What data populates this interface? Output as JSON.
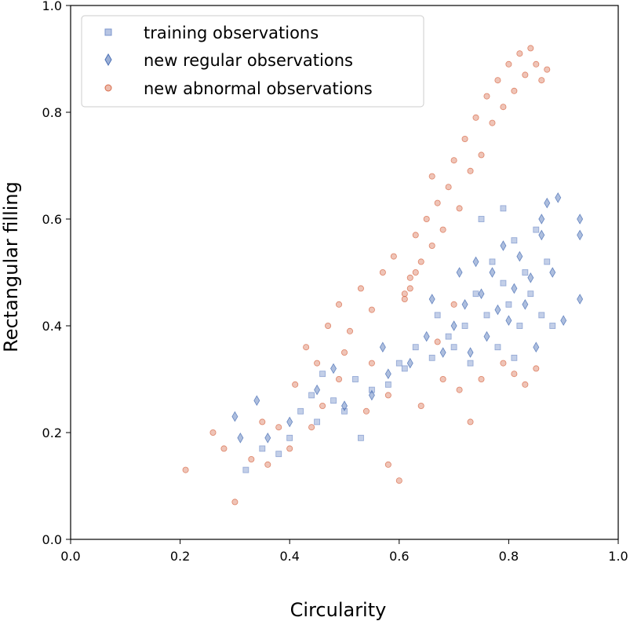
{
  "chart_data": {
    "type": "scatter",
    "xlabel": "Circularity",
    "ylabel": "Rectangular filling",
    "xlim": [
      0.0,
      1.0
    ],
    "ylim": [
      0.0,
      1.0
    ],
    "xticks": [
      "0.0",
      "0.2",
      "0.4",
      "0.6",
      "0.8",
      "1.0"
    ],
    "yticks": [
      "0.0",
      "0.2",
      "0.4",
      "0.6",
      "0.8",
      "1.0"
    ],
    "grid": false,
    "legend_position": "top-left",
    "series": [
      {
        "name": "training observations",
        "marker": "square",
        "color": "#7b95cc",
        "points": [
          [
            0.32,
            0.13
          ],
          [
            0.35,
            0.17
          ],
          [
            0.38,
            0.16
          ],
          [
            0.4,
            0.19
          ],
          [
            0.42,
            0.24
          ],
          [
            0.44,
            0.27
          ],
          [
            0.46,
            0.31
          ],
          [
            0.48,
            0.26
          ],
          [
            0.5,
            0.24
          ],
          [
            0.52,
            0.3
          ],
          [
            0.55,
            0.28
          ],
          [
            0.58,
            0.29
          ],
          [
            0.6,
            0.33
          ],
          [
            0.63,
            0.36
          ],
          [
            0.66,
            0.34
          ],
          [
            0.69,
            0.38
          ],
          [
            0.72,
            0.4
          ],
          [
            0.74,
            0.46
          ],
          [
            0.76,
            0.42
          ],
          [
            0.77,
            0.52
          ],
          [
            0.78,
            0.36
          ],
          [
            0.79,
            0.48
          ],
          [
            0.8,
            0.44
          ],
          [
            0.81,
            0.56
          ],
          [
            0.82,
            0.4
          ],
          [
            0.83,
            0.5
          ],
          [
            0.84,
            0.46
          ],
          [
            0.85,
            0.58
          ],
          [
            0.86,
            0.42
          ],
          [
            0.87,
            0.52
          ],
          [
            0.88,
            0.4
          ],
          [
            0.75,
            0.6
          ],
          [
            0.73,
            0.33
          ],
          [
            0.79,
            0.62
          ],
          [
            0.81,
            0.34
          ],
          [
            0.53,
            0.19
          ],
          [
            0.61,
            0.32
          ],
          [
            0.67,
            0.42
          ],
          [
            0.7,
            0.36
          ],
          [
            0.45,
            0.22
          ]
        ]
      },
      {
        "name": "new regular observations",
        "marker": "diamond",
        "color": "#4a6fb5",
        "points": [
          [
            0.93,
            0.45
          ],
          [
            0.93,
            0.57
          ],
          [
            0.93,
            0.6
          ],
          [
            0.9,
            0.41
          ],
          [
            0.89,
            0.64
          ],
          [
            0.88,
            0.5
          ],
          [
            0.87,
            0.63
          ],
          [
            0.86,
            0.57
          ],
          [
            0.85,
            0.36
          ],
          [
            0.84,
            0.49
          ],
          [
            0.83,
            0.44
          ],
          [
            0.82,
            0.53
          ],
          [
            0.81,
            0.47
          ],
          [
            0.8,
            0.41
          ],
          [
            0.79,
            0.55
          ],
          [
            0.78,
            0.43
          ],
          [
            0.77,
            0.5
          ],
          [
            0.76,
            0.38
          ],
          [
            0.75,
            0.46
          ],
          [
            0.74,
            0.52
          ],
          [
            0.73,
            0.35
          ],
          [
            0.72,
            0.44
          ],
          [
            0.7,
            0.4
          ],
          [
            0.68,
            0.35
          ],
          [
            0.65,
            0.38
          ],
          [
            0.62,
            0.33
          ],
          [
            0.58,
            0.31
          ],
          [
            0.55,
            0.27
          ],
          [
            0.5,
            0.25
          ],
          [
            0.45,
            0.28
          ],
          [
            0.4,
            0.22
          ],
          [
            0.36,
            0.19
          ],
          [
            0.31,
            0.19
          ],
          [
            0.3,
            0.23
          ],
          [
            0.34,
            0.26
          ],
          [
            0.48,
            0.32
          ],
          [
            0.57,
            0.36
          ],
          [
            0.66,
            0.45
          ],
          [
            0.71,
            0.5
          ],
          [
            0.86,
            0.6
          ]
        ]
      },
      {
        "name": "new abnormal observations",
        "marker": "circle",
        "color": "#d86b4a",
        "points": [
          [
            0.21,
            0.13
          ],
          [
            0.26,
            0.2
          ],
          [
            0.28,
            0.17
          ],
          [
            0.3,
            0.07
          ],
          [
            0.33,
            0.15
          ],
          [
            0.36,
            0.14
          ],
          [
            0.38,
            0.21
          ],
          [
            0.41,
            0.29
          ],
          [
            0.43,
            0.36
          ],
          [
            0.45,
            0.33
          ],
          [
            0.47,
            0.4
          ],
          [
            0.49,
            0.44
          ],
          [
            0.51,
            0.39
          ],
          [
            0.53,
            0.47
          ],
          [
            0.55,
            0.43
          ],
          [
            0.57,
            0.5
          ],
          [
            0.59,
            0.53
          ],
          [
            0.6,
            0.11
          ],
          [
            0.61,
            0.46
          ],
          [
            0.62,
            0.49
          ],
          [
            0.63,
            0.57
          ],
          [
            0.64,
            0.52
          ],
          [
            0.65,
            0.6
          ],
          [
            0.66,
            0.55
          ],
          [
            0.67,
            0.63
          ],
          [
            0.68,
            0.58
          ],
          [
            0.69,
            0.66
          ],
          [
            0.7,
            0.71
          ],
          [
            0.71,
            0.62
          ],
          [
            0.72,
            0.75
          ],
          [
            0.73,
            0.69
          ],
          [
            0.74,
            0.79
          ],
          [
            0.75,
            0.72
          ],
          [
            0.76,
            0.83
          ],
          [
            0.77,
            0.78
          ],
          [
            0.78,
            0.86
          ],
          [
            0.79,
            0.81
          ],
          [
            0.8,
            0.89
          ],
          [
            0.81,
            0.84
          ],
          [
            0.82,
            0.91
          ],
          [
            0.83,
            0.87
          ],
          [
            0.84,
            0.92
          ],
          [
            0.85,
            0.89
          ],
          [
            0.86,
            0.86
          ],
          [
            0.87,
            0.88
          ],
          [
            0.79,
            0.33
          ],
          [
            0.81,
            0.31
          ],
          [
            0.83,
            0.29
          ],
          [
            0.85,
            0.32
          ],
          [
            0.75,
            0.3
          ],
          [
            0.71,
            0.28
          ],
          [
            0.68,
            0.3
          ],
          [
            0.64,
            0.25
          ],
          [
            0.58,
            0.27
          ],
          [
            0.54,
            0.24
          ],
          [
            0.49,
            0.3
          ],
          [
            0.46,
            0.25
          ],
          [
            0.44,
            0.21
          ],
          [
            0.4,
            0.17
          ],
          [
            0.35,
            0.22
          ],
          [
            0.62,
            0.47
          ],
          [
            0.61,
            0.45
          ],
          [
            0.63,
            0.5
          ],
          [
            0.73,
            0.22
          ],
          [
            0.58,
            0.14
          ],
          [
            0.55,
            0.33
          ],
          [
            0.5,
            0.35
          ],
          [
            0.67,
            0.37
          ],
          [
            0.7,
            0.44
          ],
          [
            0.66,
            0.68
          ]
        ]
      }
    ]
  }
}
